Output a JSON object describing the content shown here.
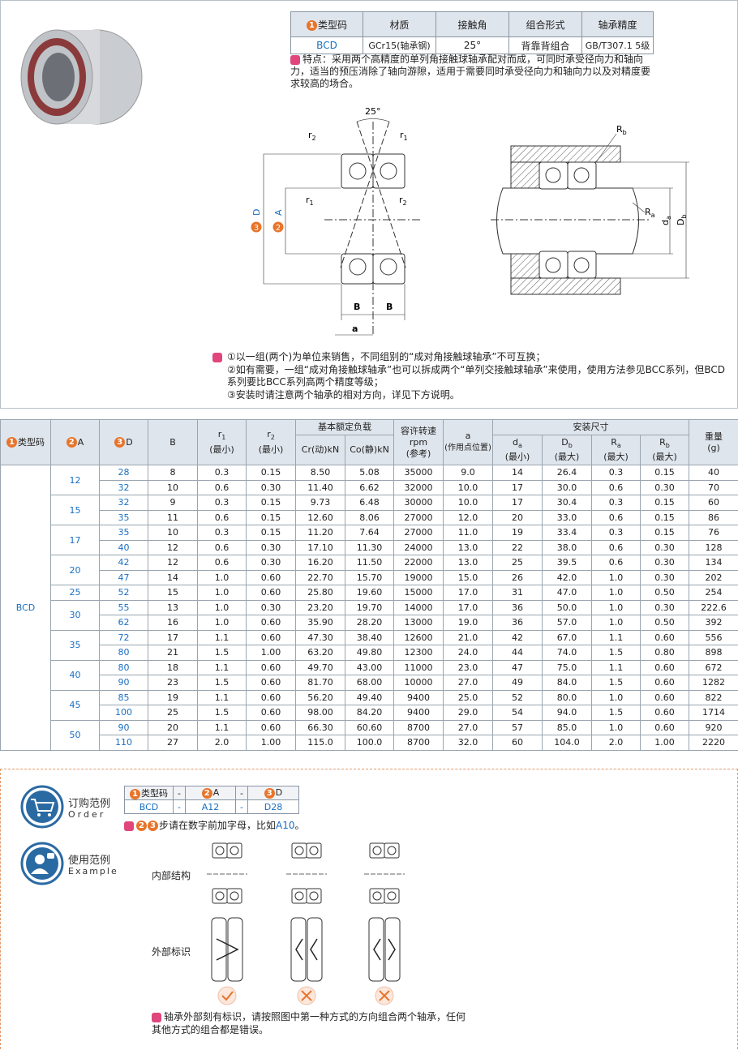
{
  "spec_table": {
    "headers": [
      {
        "num": "1",
        "text": "类型码"
      },
      "材质",
      "接触角",
      "组合形式",
      "轴承精度"
    ],
    "row": [
      "BCD",
      "GCr15(轴承钢)",
      "25°",
      "背靠背组合",
      "GB/T307.1 5级"
    ]
  },
  "feature": "特点：采用两个高精度的单列角接触球轴承配对而成，可同时承受径向力和轴向力，适当的预压消除了轴向游隙，适用于需要同时承受径向力和轴向力以及对精度要求较高的场合。",
  "diagram": {
    "angle": "25°",
    "r2_top": [
      "r",
      "2"
    ],
    "r1_top": [
      "r",
      "1"
    ],
    "r1_mid": [
      "r",
      "1"
    ],
    "r2_mid": [
      "r",
      "2"
    ],
    "D": {
      "num": "3",
      "text": "D"
    },
    "A": {
      "num": "2",
      "text": "A"
    },
    "B1": "B",
    "B2": "B",
    "a": "a",
    "Rb": [
      "R",
      "b"
    ],
    "Ra": [
      "R",
      "a"
    ],
    "da": [
      "d",
      "a"
    ],
    "Db": [
      "D",
      "b"
    ]
  },
  "notes": [
    "①以一组(两个)为单位来销售，不同组别的“成对角接触球轴承”不可互换；",
    "②如有需要，一组“成对角接触球轴承”也可以拆成两个“单列交接触球轴承”来使用，使用方法参见BCC系列，但BCD系列要比BCC系列高两个精度等级；",
    "③安装时请注意两个轴承的相对方向，详见下方说明。"
  ],
  "table": {
    "headers": {
      "type_num": "1",
      "type": "类型码",
      "A_num": "2",
      "A": "A",
      "D_num": "3",
      "D": "D",
      "B": "B",
      "r1": [
        "r",
        "1",
        "(最小)"
      ],
      "r2": [
        "r",
        "2",
        "(最小)"
      ],
      "load": "基本额定负载",
      "Cr": "Cr(动)kN",
      "Co": "Co(静)kN",
      "speed": [
        "容许转速",
        "rpm",
        "(参考)"
      ],
      "a": [
        "a",
        "(作用点位置)"
      ],
      "mount": "安装尺寸",
      "da": [
        "d",
        "a",
        "(最小)"
      ],
      "Db": [
        "D",
        "b",
        "(最大)"
      ],
      "Ra": [
        "R",
        "a",
        "(最大)"
      ],
      "Rb": [
        "R",
        "b",
        "(最大)"
      ],
      "weight": [
        "重量",
        "(g)"
      ]
    },
    "type": "BCD",
    "groups": [
      {
        "A": "12",
        "rows": [
          [
            "28",
            "8",
            "0.3",
            "0.15",
            "8.50",
            "5.08",
            "35000",
            "9.0",
            "14",
            "26.4",
            "0.3",
            "0.15",
            "40"
          ],
          [
            "32",
            "10",
            "0.6",
            "0.30",
            "11.40",
            "6.62",
            "32000",
            "10.0",
            "17",
            "30.0",
            "0.6",
            "0.30",
            "70"
          ]
        ]
      },
      {
        "A": "15",
        "rows": [
          [
            "32",
            "9",
            "0.3",
            "0.15",
            "9.73",
            "6.48",
            "30000",
            "10.0",
            "17",
            "30.4",
            "0.3",
            "0.15",
            "60"
          ],
          [
            "35",
            "11",
            "0.6",
            "0.15",
            "12.60",
            "8.06",
            "27000",
            "12.0",
            "20",
            "33.0",
            "0.6",
            "0.15",
            "86"
          ]
        ]
      },
      {
        "A": "17",
        "rows": [
          [
            "35",
            "10",
            "0.3",
            "0.15",
            "11.20",
            "7.64",
            "27000",
            "11.0",
            "19",
            "33.4",
            "0.3",
            "0.15",
            "76"
          ],
          [
            "40",
            "12",
            "0.6",
            "0.30",
            "17.10",
            "11.30",
            "24000",
            "13.0",
            "22",
            "38.0",
            "0.6",
            "0.30",
            "128"
          ]
        ]
      },
      {
        "A": "20",
        "rows": [
          [
            "42",
            "12",
            "0.6",
            "0.30",
            "16.20",
            "11.50",
            "22000",
            "13.0",
            "25",
            "39.5",
            "0.6",
            "0.30",
            "134"
          ],
          [
            "47",
            "14",
            "1.0",
            "0.60",
            "22.70",
            "15.70",
            "19000",
            "15.0",
            "26",
            "42.0",
            "1.0",
            "0.30",
            "202"
          ]
        ]
      },
      {
        "A": "25",
        "rows": [
          [
            "52",
            "15",
            "1.0",
            "0.60",
            "25.80",
            "19.60",
            "15000",
            "17.0",
            "31",
            "47.0",
            "1.0",
            "0.50",
            "254"
          ]
        ]
      },
      {
        "A": "30",
        "rows": [
          [
            "55",
            "13",
            "1.0",
            "0.30",
            "23.20",
            "19.70",
            "14000",
            "17.0",
            "36",
            "50.0",
            "1.0",
            "0.30",
            "222.6"
          ],
          [
            "62",
            "16",
            "1.0",
            "0.60",
            "35.90",
            "28.20",
            "13000",
            "19.0",
            "36",
            "57.0",
            "1.0",
            "0.50",
            "392"
          ]
        ]
      },
      {
        "A": "35",
        "rows": [
          [
            "72",
            "17",
            "1.1",
            "0.60",
            "47.30",
            "38.40",
            "12600",
            "21.0",
            "42",
            "67.0",
            "1.1",
            "0.60",
            "556"
          ],
          [
            "80",
            "21",
            "1.5",
            "1.00",
            "63.20",
            "49.80",
            "12300",
            "24.0",
            "44",
            "74.0",
            "1.5",
            "0.80",
            "898"
          ]
        ]
      },
      {
        "A": "40",
        "rows": [
          [
            "80",
            "18",
            "1.1",
            "0.60",
            "49.70",
            "43.00",
            "11000",
            "23.0",
            "47",
            "75.0",
            "1.1",
            "0.60",
            "672"
          ],
          [
            "90",
            "23",
            "1.5",
            "0.60",
            "81.70",
            "68.00",
            "10000",
            "27.0",
            "49",
            "84.0",
            "1.5",
            "0.60",
            "1282"
          ]
        ]
      },
      {
        "A": "45",
        "rows": [
          [
            "85",
            "19",
            "1.1",
            "0.60",
            "56.20",
            "49.40",
            "9400",
            "25.0",
            "52",
            "80.0",
            "1.0",
            "0.60",
            "822"
          ],
          [
            "100",
            "25",
            "1.5",
            "0.60",
            "98.00",
            "84.20",
            "9400",
            "29.0",
            "54",
            "94.0",
            "1.5",
            "0.60",
            "1714"
          ]
        ]
      },
      {
        "A": "50",
        "rows": [
          [
            "90",
            "20",
            "1.1",
            "0.60",
            "66.30",
            "60.60",
            "8700",
            "27.0",
            "57",
            "85.0",
            "1.0",
            "0.60",
            "920"
          ],
          [
            "110",
            "27",
            "2.0",
            "1.00",
            "115.0",
            "100.0",
            "8700",
            "32.0",
            "60",
            "104.0",
            "2.0",
            "1.00",
            "2220"
          ]
        ]
      }
    ]
  },
  "order": {
    "title": "订购范例",
    "en": "Order",
    "headers": [
      {
        "num": "1",
        "text": "类型码"
      },
      "-",
      {
        "num": "2",
        "text": "A"
      },
      "-",
      {
        "num": "3",
        "text": "D"
      }
    ],
    "values": [
      "BCD",
      "-",
      "A12",
      "-",
      "D28"
    ],
    "note": {
      "nums": [
        "2",
        "3"
      ],
      "text": "步请在数字前加字母，比如",
      "example": "A10",
      "end": "。"
    }
  },
  "example": {
    "title": "使用范例",
    "en": "Example",
    "inner": "内部结构",
    "outer": "外部标识",
    "note": "轴承外部刻有标识，请按照图中第一种方式的方向组合两个轴承，任何其他方式的组合都是错误。"
  }
}
